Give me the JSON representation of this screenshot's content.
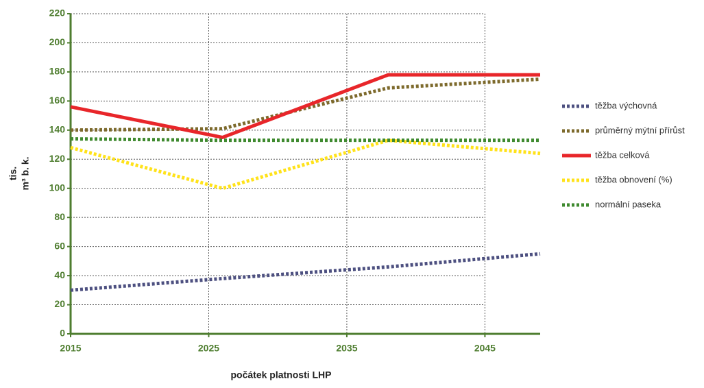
{
  "chart_data": {
    "type": "line",
    "x_label": "počátek platnosti LHP",
    "y_label": [
      "tis.",
      "m³ b. k."
    ],
    "x": [
      2015,
      2026,
      2038,
      2049
    ],
    "xlim": [
      2015,
      2049
    ],
    "xticks": [
      2015,
      2025,
      2035,
      2045
    ],
    "ylim": [
      0,
      220
    ],
    "yticks": [
      0,
      20,
      40,
      60,
      80,
      100,
      120,
      140,
      160,
      180,
      200,
      220
    ],
    "grid": true,
    "legend": "right",
    "axis_color": "#4e7d2f",
    "series": [
      {
        "name": "těžba výchovná",
        "color": "#4d5080",
        "dash": true,
        "values": [
          30,
          38,
          46,
          55
        ]
      },
      {
        "name": "průměrný mýtní přírůst",
        "color": "#7d6a2c",
        "dash": true,
        "values": [
          140,
          141,
          169,
          175
        ]
      },
      {
        "name": "těžba celková",
        "color": "#e8262a",
        "dash": false,
        "values": [
          156,
          135,
          178,
          178
        ]
      },
      {
        "name": "těžba obnovení (%)",
        "color": "#ffe21a",
        "dash": true,
        "values": [
          128,
          100,
          133,
          124
        ]
      },
      {
        "name": "normální paseka",
        "color": "#3f8a2f",
        "dash": true,
        "values": [
          134,
          133,
          133,
          133
        ]
      }
    ]
  }
}
